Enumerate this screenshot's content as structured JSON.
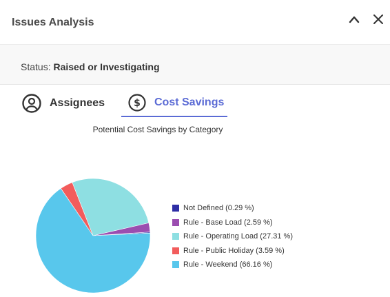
{
  "window": {
    "title": "Issues Analysis"
  },
  "status": {
    "label": "Status:",
    "value": "Raised or Investigating"
  },
  "tabs": [
    {
      "label": "Assignees",
      "icon": "user-circle-icon",
      "active": false
    },
    {
      "label": "Cost Savings",
      "icon": "dollar-circle-icon",
      "active": true
    }
  ],
  "colors": {
    "accent": "#5b6bd5"
  },
  "chart_data": {
    "type": "pie",
    "title": "Potential Cost Savings by Category",
    "slices": [
      {
        "name": "Not Defined (0.29 %)",
        "value": 0.29,
        "color": "#2e2ea5"
      },
      {
        "name": "Rule - Base Load (2.59 %)",
        "value": 2.59,
        "color": "#9b4db0"
      },
      {
        "name": "Rule - Operating Load (27.31 %)",
        "value": 27.31,
        "color": "#8edfe2"
      },
      {
        "name": "Rule - Public Holiday (3.59 %)",
        "value": 3.59,
        "color": "#f25c5c"
      },
      {
        "name": "Rule - Weekend (66.16 %)",
        "value": 66.16,
        "color": "#58c7ec"
      }
    ],
    "legend_position": "right"
  }
}
